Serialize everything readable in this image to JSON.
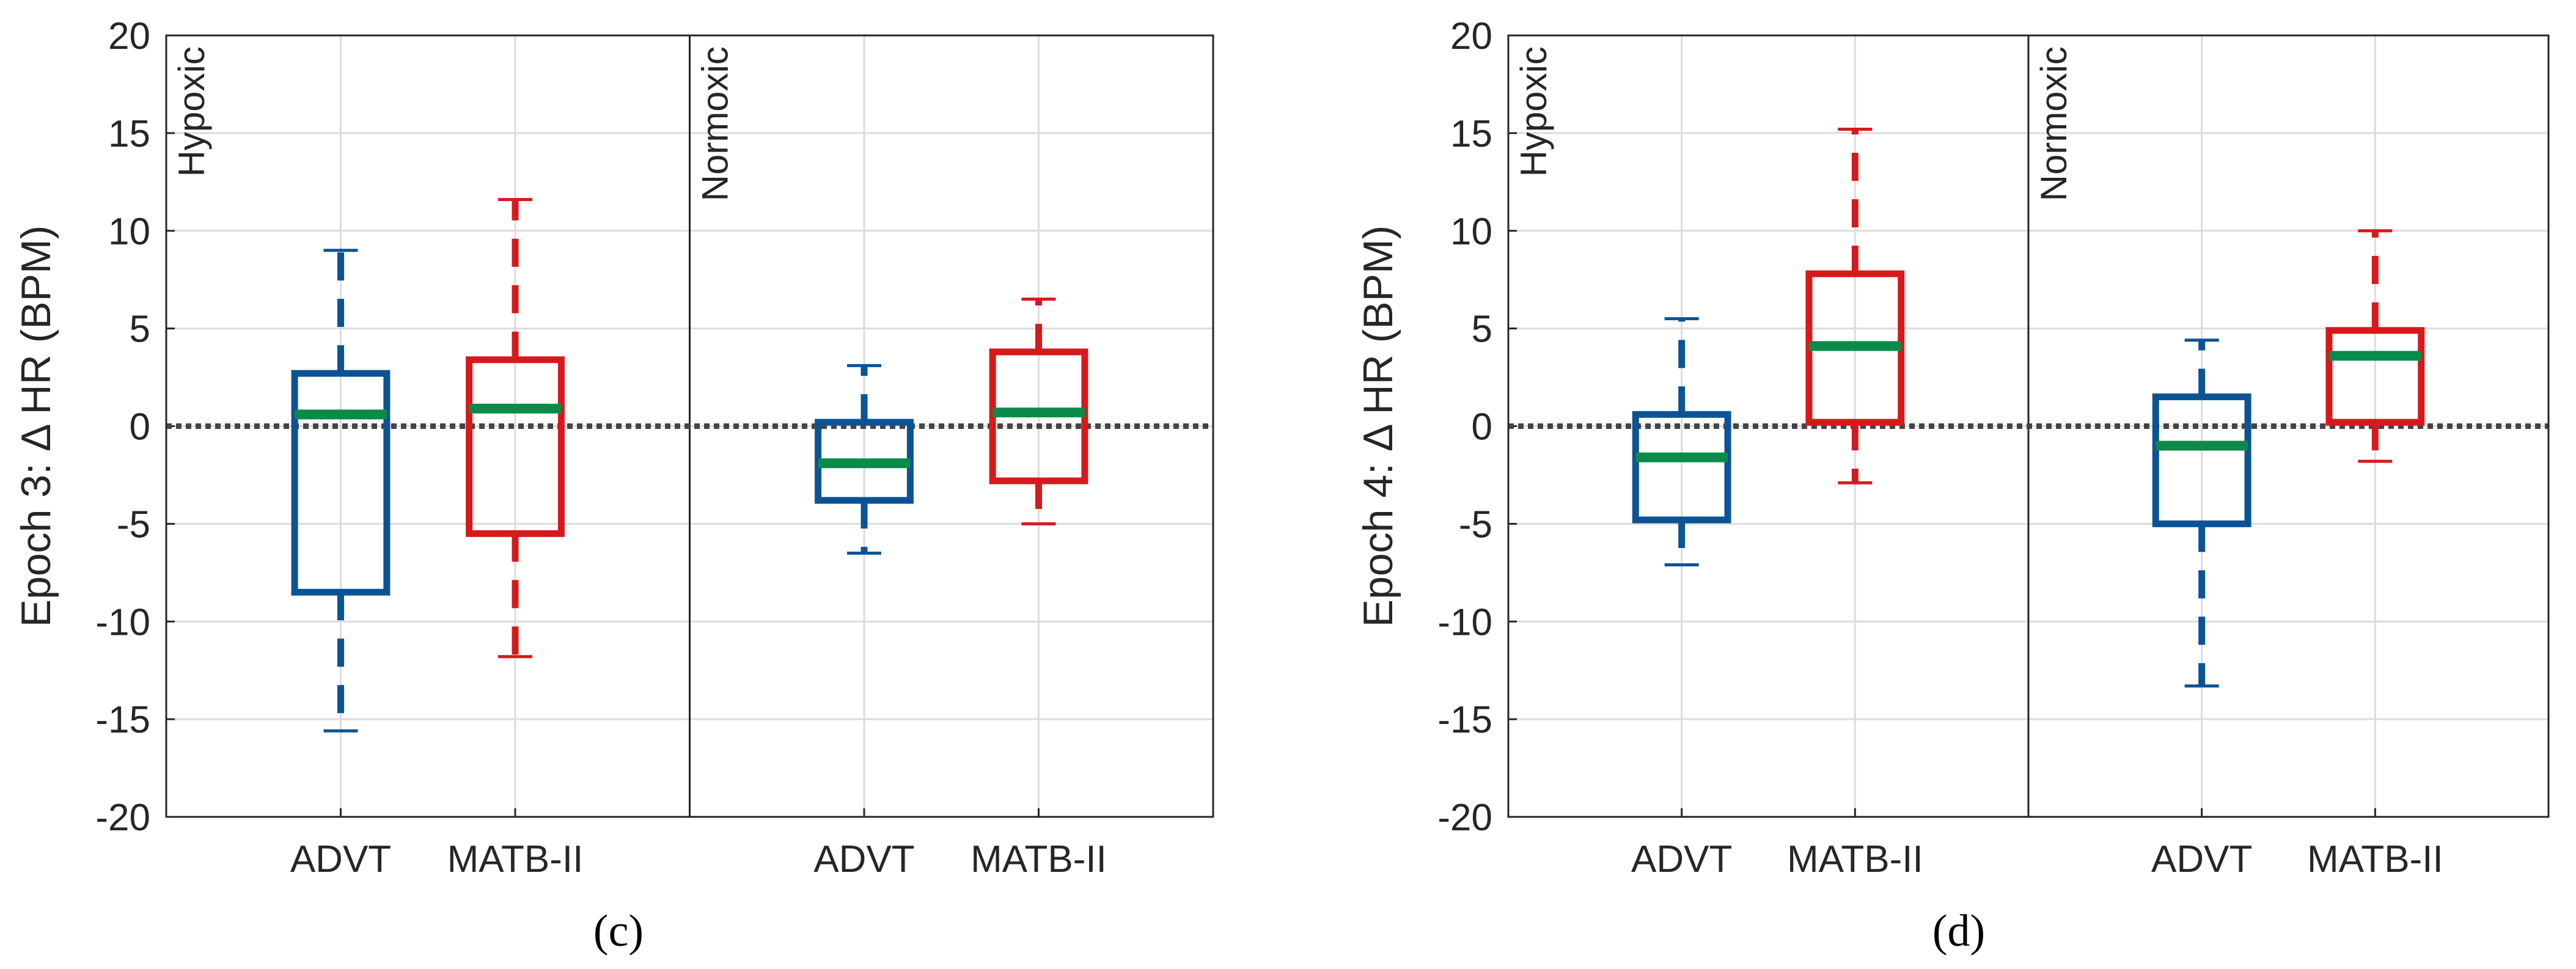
{
  "figure": {
    "panels": [
      "(c)",
      "(d)"
    ]
  },
  "colors": {
    "advt": "#0b5394",
    "matb": "#d7191c",
    "median": "#0b8a4a",
    "zero_line": "#444444",
    "grid": "#dcdcdc",
    "axis": "#262626"
  },
  "chart_data": [
    {
      "type": "box",
      "panel_label": "(c)",
      "ylabel": "Epoch 3: Δ HR (BPM)",
      "ylim": [
        -20,
        20
      ],
      "yticks": [
        -20,
        -15,
        -10,
        -5,
        0,
        5,
        10,
        15,
        20
      ],
      "grid": true,
      "reference_line": 0,
      "groups": [
        {
          "label": "Hypoxic",
          "boxes": [
            {
              "name": "ADVT",
              "whisker_low": -15.6,
              "q1": -8.5,
              "median": 0.6,
              "q3": 2.7,
              "whisker_high": 9.0
            },
            {
              "name": "MATB-II",
              "whisker_low": -11.8,
              "q1": -5.5,
              "median": 0.9,
              "q3": 3.4,
              "whisker_high": 11.6
            }
          ]
        },
        {
          "label": "Normoxic",
          "boxes": [
            {
              "name": "ADVT",
              "whisker_low": -6.5,
              "q1": -3.8,
              "median": -1.9,
              "q3": 0.2,
              "whisker_high": 3.1
            },
            {
              "name": "MATB-II",
              "whisker_low": -5.0,
              "q1": -2.8,
              "median": 0.7,
              "q3": 3.8,
              "whisker_high": 6.5
            }
          ]
        }
      ]
    },
    {
      "type": "box",
      "panel_label": "(d)",
      "ylabel": "Epoch 4: Δ HR (BPM)",
      "ylim": [
        -20,
        20
      ],
      "yticks": [
        -20,
        -15,
        -10,
        -5,
        0,
        5,
        10,
        15,
        20
      ],
      "grid": true,
      "reference_line": 0,
      "groups": [
        {
          "label": "Hypoxic",
          "boxes": [
            {
              "name": "ADVT",
              "whisker_low": -7.1,
              "q1": -4.8,
              "median": -1.6,
              "q3": 0.6,
              "whisker_high": 5.5
            },
            {
              "name": "MATB-II",
              "whisker_low": -2.9,
              "q1": 0.2,
              "median": 4.1,
              "q3": 7.8,
              "whisker_high": 15.2
            }
          ]
        },
        {
          "label": "Normoxic",
          "boxes": [
            {
              "name": "ADVT",
              "whisker_low": -13.3,
              "q1": -5.0,
              "median": -1.0,
              "q3": 1.5,
              "whisker_high": 4.4
            },
            {
              "name": "MATB-II",
              "whisker_low": -1.8,
              "q1": 0.2,
              "median": 3.6,
              "q3": 4.9,
              "whisker_high": 10.0
            }
          ]
        }
      ]
    }
  ]
}
